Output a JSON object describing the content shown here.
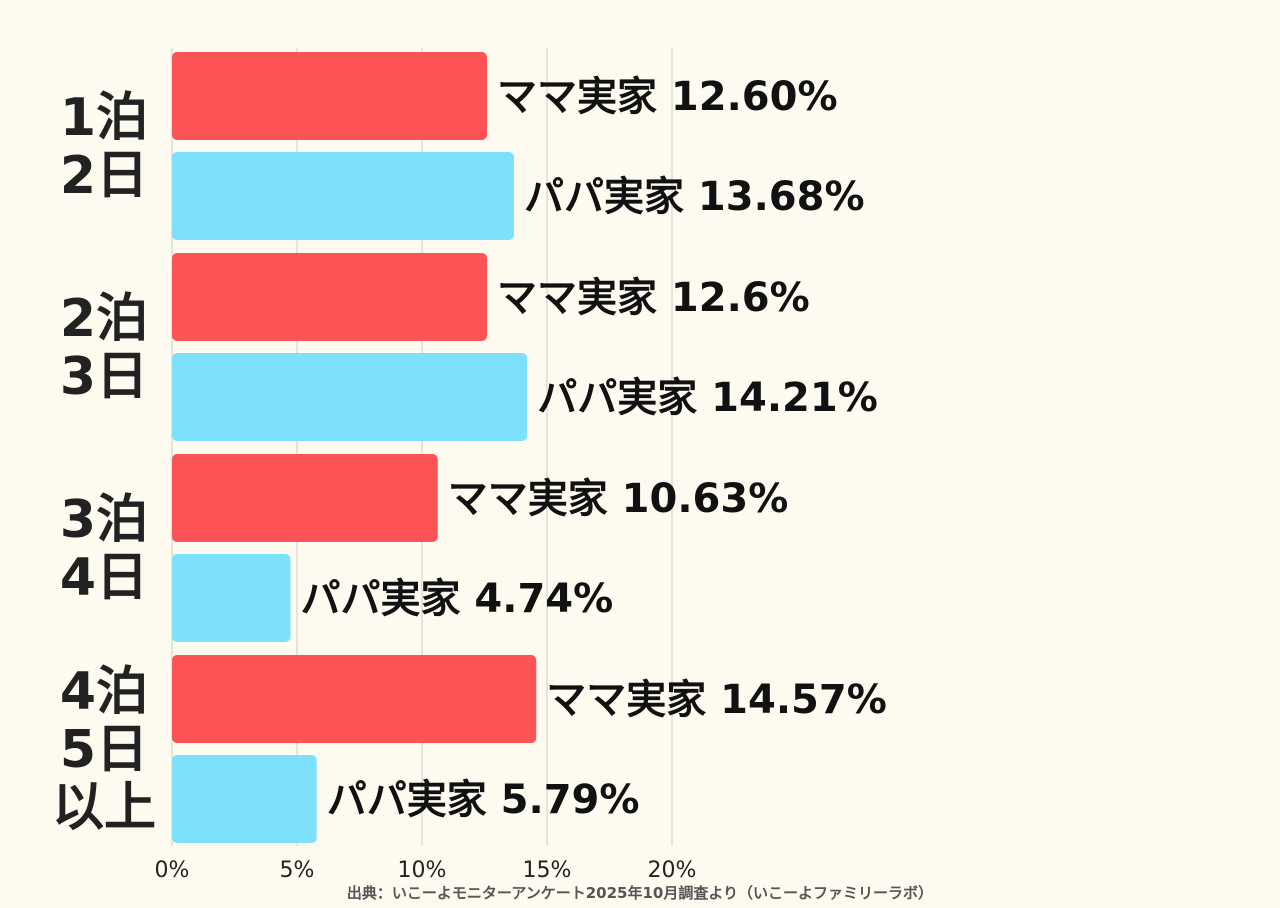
{
  "chart_data": {
    "type": "bar",
    "orientation": "horizontal",
    "categories": [
      [
        "1泊",
        "2日"
      ],
      [
        "2泊",
        "3日"
      ],
      [
        "3泊",
        "4日"
      ],
      [
        "4泊",
        "5日",
        "以上"
      ]
    ],
    "series": [
      {
        "name": "ママ実家",
        "color": "#fc5356",
        "values": [
          12.6,
          12.6,
          10.63,
          14.57
        ],
        "labels": [
          "ママ実家 12.60%",
          "ママ実家  12.6%",
          "ママ実家 10.63%",
          "ママ実家 14.57%"
        ]
      },
      {
        "name": "パパ実家",
        "color": "#7ee1fc",
        "values": [
          13.68,
          14.21,
          4.74,
          5.79
        ],
        "labels": [
          "パパ実家  13.68%",
          "パパ実家 14.21%",
          "パパ実家 4.74%",
          "パパ実家  5.79%"
        ]
      }
    ],
    "x_ticks": [
      "0%",
      "5%",
      "10%",
      "15%",
      "20%"
    ],
    "x_tick_values": [
      0,
      5,
      10,
      15,
      20
    ],
    "xlim": [
      0,
      20
    ],
    "grid": true,
    "source": "出典：いこーよモニターアンケート2025年10月調査より（いこーよファミリーラボ）"
  }
}
